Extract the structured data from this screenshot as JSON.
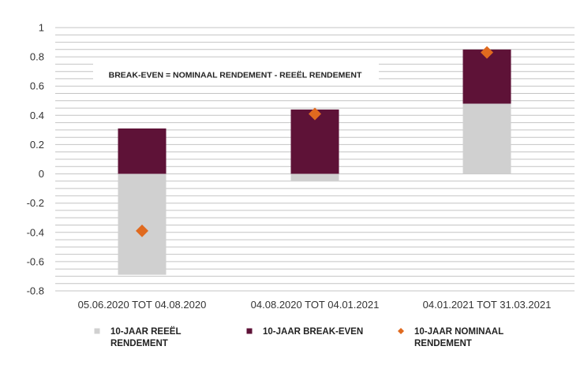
{
  "chart_data": {
    "type": "bar",
    "stacked": true,
    "categories": [
      "05.06.2020 TOT 04.08.2020",
      "04.08.2020 TOT 04.01.2021",
      "04.01.2021 TOT 31.03.2021"
    ],
    "series": [
      {
        "name": "10-JAAR REEËL RENDEMENT",
        "kind": "bar",
        "color": "#d0d0d0",
        "values": [
          -0.69,
          -0.05,
          0.48
        ]
      },
      {
        "name": "10-JAAR BREAK-EVEN",
        "kind": "bar",
        "color": "#5e1237",
        "values": [
          0.31,
          0.44,
          0.37
        ]
      },
      {
        "name": "10-JAAR NOMINAAL RENDEMENT",
        "kind": "marker",
        "marker": "diamond",
        "color": "#e06a1f",
        "values": [
          -0.39,
          0.41,
          0.83
        ]
      }
    ],
    "ylim": [
      -0.8,
      1
    ],
    "yticks": [
      "-0.8",
      "-0.6",
      "-0.4",
      "-0.2",
      "0",
      "0.2",
      "0.4",
      "0.6",
      "0.8",
      "1"
    ],
    "ytick_values": [
      -0.8,
      -0.6,
      -0.4,
      -0.2,
      0,
      0.2,
      0.4,
      0.6,
      0.8,
      1
    ],
    "minor_grid_step": 0.05,
    "grid": true,
    "legend_position": "bottom",
    "annotation": "BREAK-EVEN = NOMINAAL RENDEMENT - REEËL RENDEMENT",
    "legend": [
      {
        "lines": [
          "10-JAAR REEËL",
          "RENDEMENT"
        ],
        "symbol": "square",
        "color": "#d0d0d0"
      },
      {
        "lines": [
          "10-JAAR BREAK-EVEN"
        ],
        "symbol": "square",
        "color": "#5e1237"
      },
      {
        "lines": [
          "10-JAAR NOMINAAL",
          "RENDEMENT"
        ],
        "symbol": "diamond",
        "color": "#e06a1f"
      }
    ]
  }
}
